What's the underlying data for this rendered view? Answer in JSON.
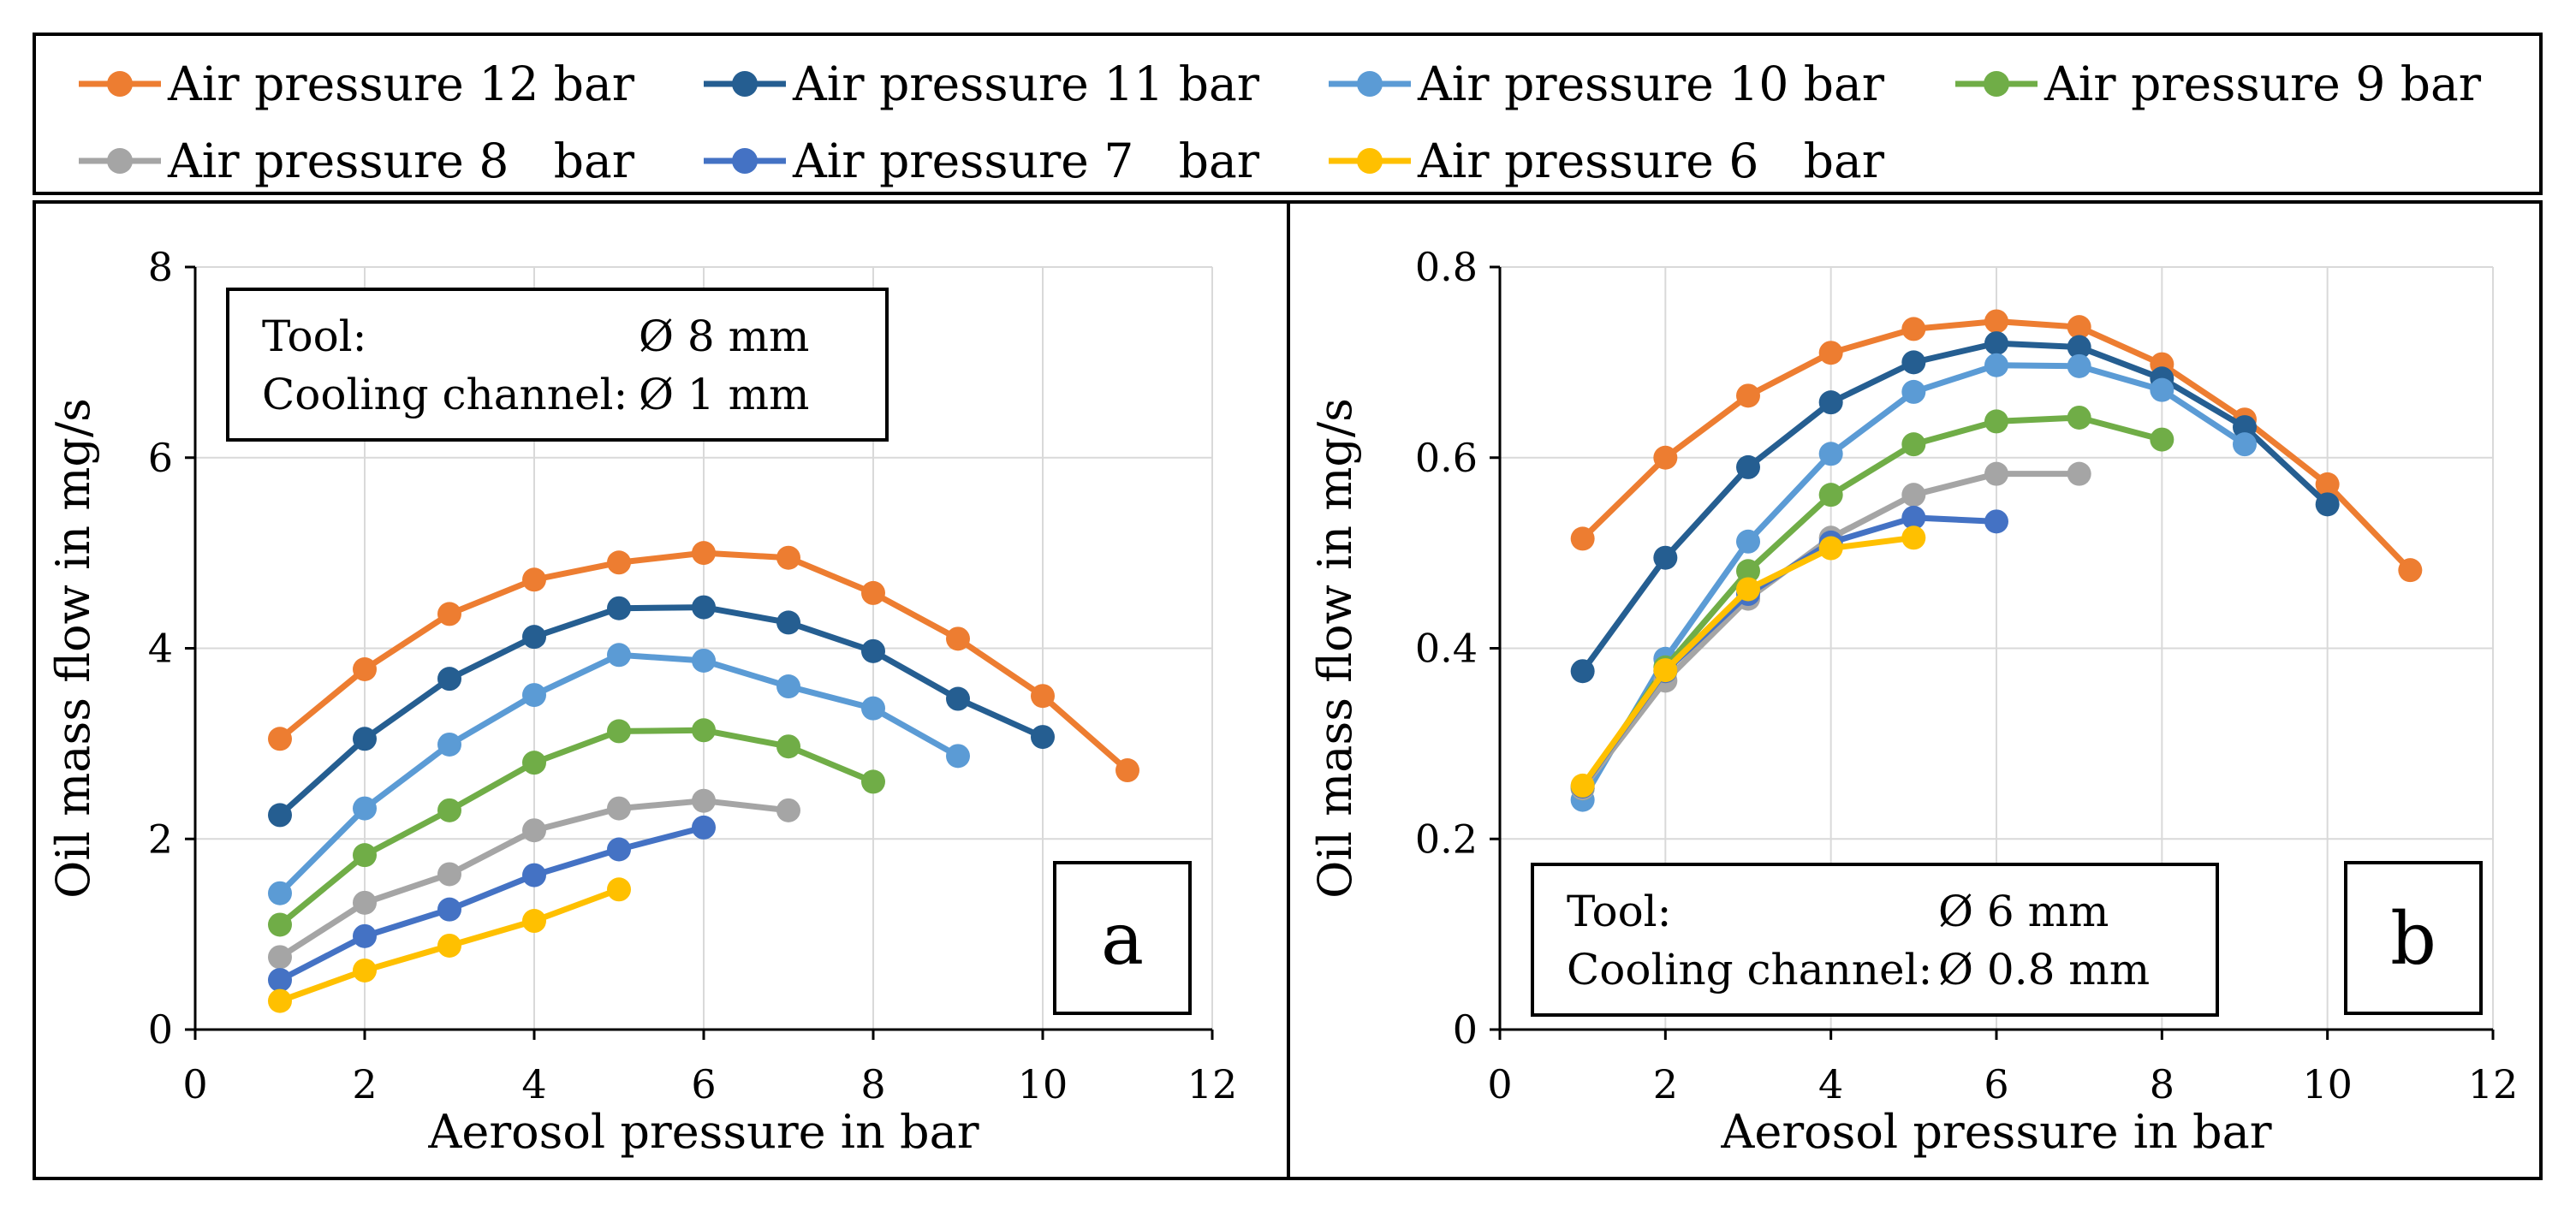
{
  "legend": [
    {
      "label": "Air pressure 12 bar",
      "color": "#ED7D31"
    },
    {
      "label": "Air pressure 11 bar",
      "color": "#255E91"
    },
    {
      "label": "Air pressure 10 bar",
      "color": "#5B9BD5"
    },
    {
      "label": "Air pressure 9 bar",
      "color": "#70AD47"
    },
    {
      "label": "Air pressure 8   bar",
      "color": "#A5A5A5"
    },
    {
      "label": "Air pressure 7   bar",
      "color": "#4472C4"
    },
    {
      "label": "Air pressure 6   bar",
      "color": "#FFC000"
    }
  ],
  "chart_data": [
    {
      "type": "line",
      "panel_letter": "a",
      "xlabel": "Aerosol pressure in bar",
      "ylabel": "Oil mass flow in mg/s",
      "xlim": [
        0,
        12
      ],
      "ylim": [
        0,
        8
      ],
      "xticks": [
        "0",
        "2",
        "4",
        "6",
        "8",
        "10",
        "12"
      ],
      "yticks": [
        "0",
        "2",
        "4",
        "6",
        "8"
      ],
      "grid": true,
      "info": {
        "line1_label": "Tool:",
        "line1_value": "Ø 8 mm",
        "line2_label": "Cooling channel:",
        "line2_value": "Ø 1 mm"
      },
      "series": [
        {
          "name": "Air pressure 12 bar",
          "color": "#ED7D31",
          "x": [
            1,
            2,
            3,
            4,
            5,
            6,
            7,
            8,
            9,
            10,
            11
          ],
          "y": [
            3.05,
            3.78,
            4.36,
            4.72,
            4.9,
            5.0,
            4.95,
            4.58,
            4.1,
            3.5,
            2.72
          ]
        },
        {
          "name": "Air pressure 11 bar",
          "color": "#255E91",
          "x": [
            1,
            2,
            3,
            4,
            5,
            6,
            7,
            8,
            9,
            10
          ],
          "y": [
            2.25,
            3.05,
            3.68,
            4.12,
            4.42,
            4.43,
            4.27,
            3.97,
            3.47,
            3.07
          ]
        },
        {
          "name": "Air pressure 10 bar",
          "color": "#5B9BD5",
          "x": [
            1,
            2,
            3,
            4,
            5,
            6,
            7,
            8,
            9
          ],
          "y": [
            1.43,
            2.32,
            2.99,
            3.51,
            3.93,
            3.87,
            3.6,
            3.37,
            2.87
          ]
        },
        {
          "name": "Air pressure 9 bar",
          "color": "#70AD47",
          "x": [
            1,
            2,
            3,
            4,
            5,
            6,
            7,
            8
          ],
          "y": [
            1.1,
            1.83,
            2.3,
            2.8,
            3.13,
            3.14,
            2.97,
            2.6
          ]
        },
        {
          "name": "Air pressure 8   bar",
          "color": "#A5A5A5",
          "x": [
            1,
            2,
            3,
            4,
            5,
            6,
            7
          ],
          "y": [
            0.76,
            1.33,
            1.63,
            2.09,
            2.32,
            2.4,
            2.3
          ]
        },
        {
          "name": "Air pressure 7   bar",
          "color": "#4472C4",
          "x": [
            1,
            2,
            3,
            4,
            5,
            6
          ],
          "y": [
            0.52,
            0.98,
            1.26,
            1.62,
            1.89,
            2.12
          ]
        },
        {
          "name": "Air pressure 6   bar",
          "color": "#FFC000",
          "x": [
            1,
            2,
            3,
            4,
            5
          ],
          "y": [
            0.3,
            0.62,
            0.88,
            1.14,
            1.47
          ]
        }
      ]
    },
    {
      "type": "line",
      "panel_letter": "b",
      "xlabel": "Aerosol pressure in bar",
      "ylabel": "Oil mass flow in mg/s",
      "xlim": [
        0,
        12
      ],
      "ylim": [
        0,
        0.8
      ],
      "xticks": [
        "0",
        "2",
        "4",
        "6",
        "8",
        "10",
        "12"
      ],
      "yticks": [
        "0",
        "0.2",
        "0.4",
        "0.6",
        "0.8"
      ],
      "grid": true,
      "info": {
        "line1_label": "Tool:",
        "line1_value": "Ø 6    mm",
        "line2_label": "Cooling channel:",
        "line2_value": "Ø 0.8 mm"
      },
      "series": [
        {
          "name": "Air pressure 12 bar",
          "color": "#ED7D31",
          "x": [
            1,
            2,
            3,
            4,
            5,
            6,
            7,
            8,
            9,
            10,
            11
          ],
          "y": [
            0.515,
            0.6,
            0.665,
            0.71,
            0.735,
            0.743,
            0.737,
            0.698,
            0.64,
            0.572,
            0.482
          ]
        },
        {
          "name": "Air pressure 11 bar",
          "color": "#255E91",
          "x": [
            1,
            2,
            3,
            4,
            5,
            6,
            7,
            8,
            9,
            10
          ],
          "y": [
            0.376,
            0.495,
            0.59,
            0.658,
            0.7,
            0.72,
            0.716,
            0.683,
            0.632,
            0.551
          ]
        },
        {
          "name": "Air pressure 10 bar",
          "color": "#5B9BD5",
          "x": [
            1,
            2,
            3,
            4,
            5,
            6,
            7,
            8,
            9
          ],
          "y": [
            0.241,
            0.389,
            0.512,
            0.604,
            0.669,
            0.697,
            0.696,
            0.671,
            0.614
          ]
        },
        {
          "name": "Air pressure 9 bar",
          "color": "#70AD47",
          "x": [
            1,
            2,
            3,
            4,
            5,
            6,
            7,
            8
          ],
          "y": [
            0.253,
            0.38,
            0.481,
            0.561,
            0.614,
            0.638,
            0.642,
            0.619
          ]
        },
        {
          "name": "Air pressure 8   bar",
          "color": "#A5A5A5",
          "x": [
            1,
            2,
            3,
            4,
            5,
            6,
            7
          ],
          "y": [
            0.253,
            0.366,
            0.452,
            0.516,
            0.561,
            0.583,
            0.583
          ]
        },
        {
          "name": "Air pressure 7   bar",
          "color": "#4472C4",
          "x": [
            1,
            2,
            3,
            4,
            5,
            6
          ],
          "y": [
            0.255,
            0.376,
            0.457,
            0.511,
            0.537,
            0.533
          ]
        },
        {
          "name": "Air pressure 6   bar",
          "color": "#FFC000",
          "x": [
            1,
            2,
            3,
            4,
            5
          ],
          "y": [
            0.256,
            0.377,
            0.462,
            0.505,
            0.516
          ]
        }
      ]
    }
  ]
}
